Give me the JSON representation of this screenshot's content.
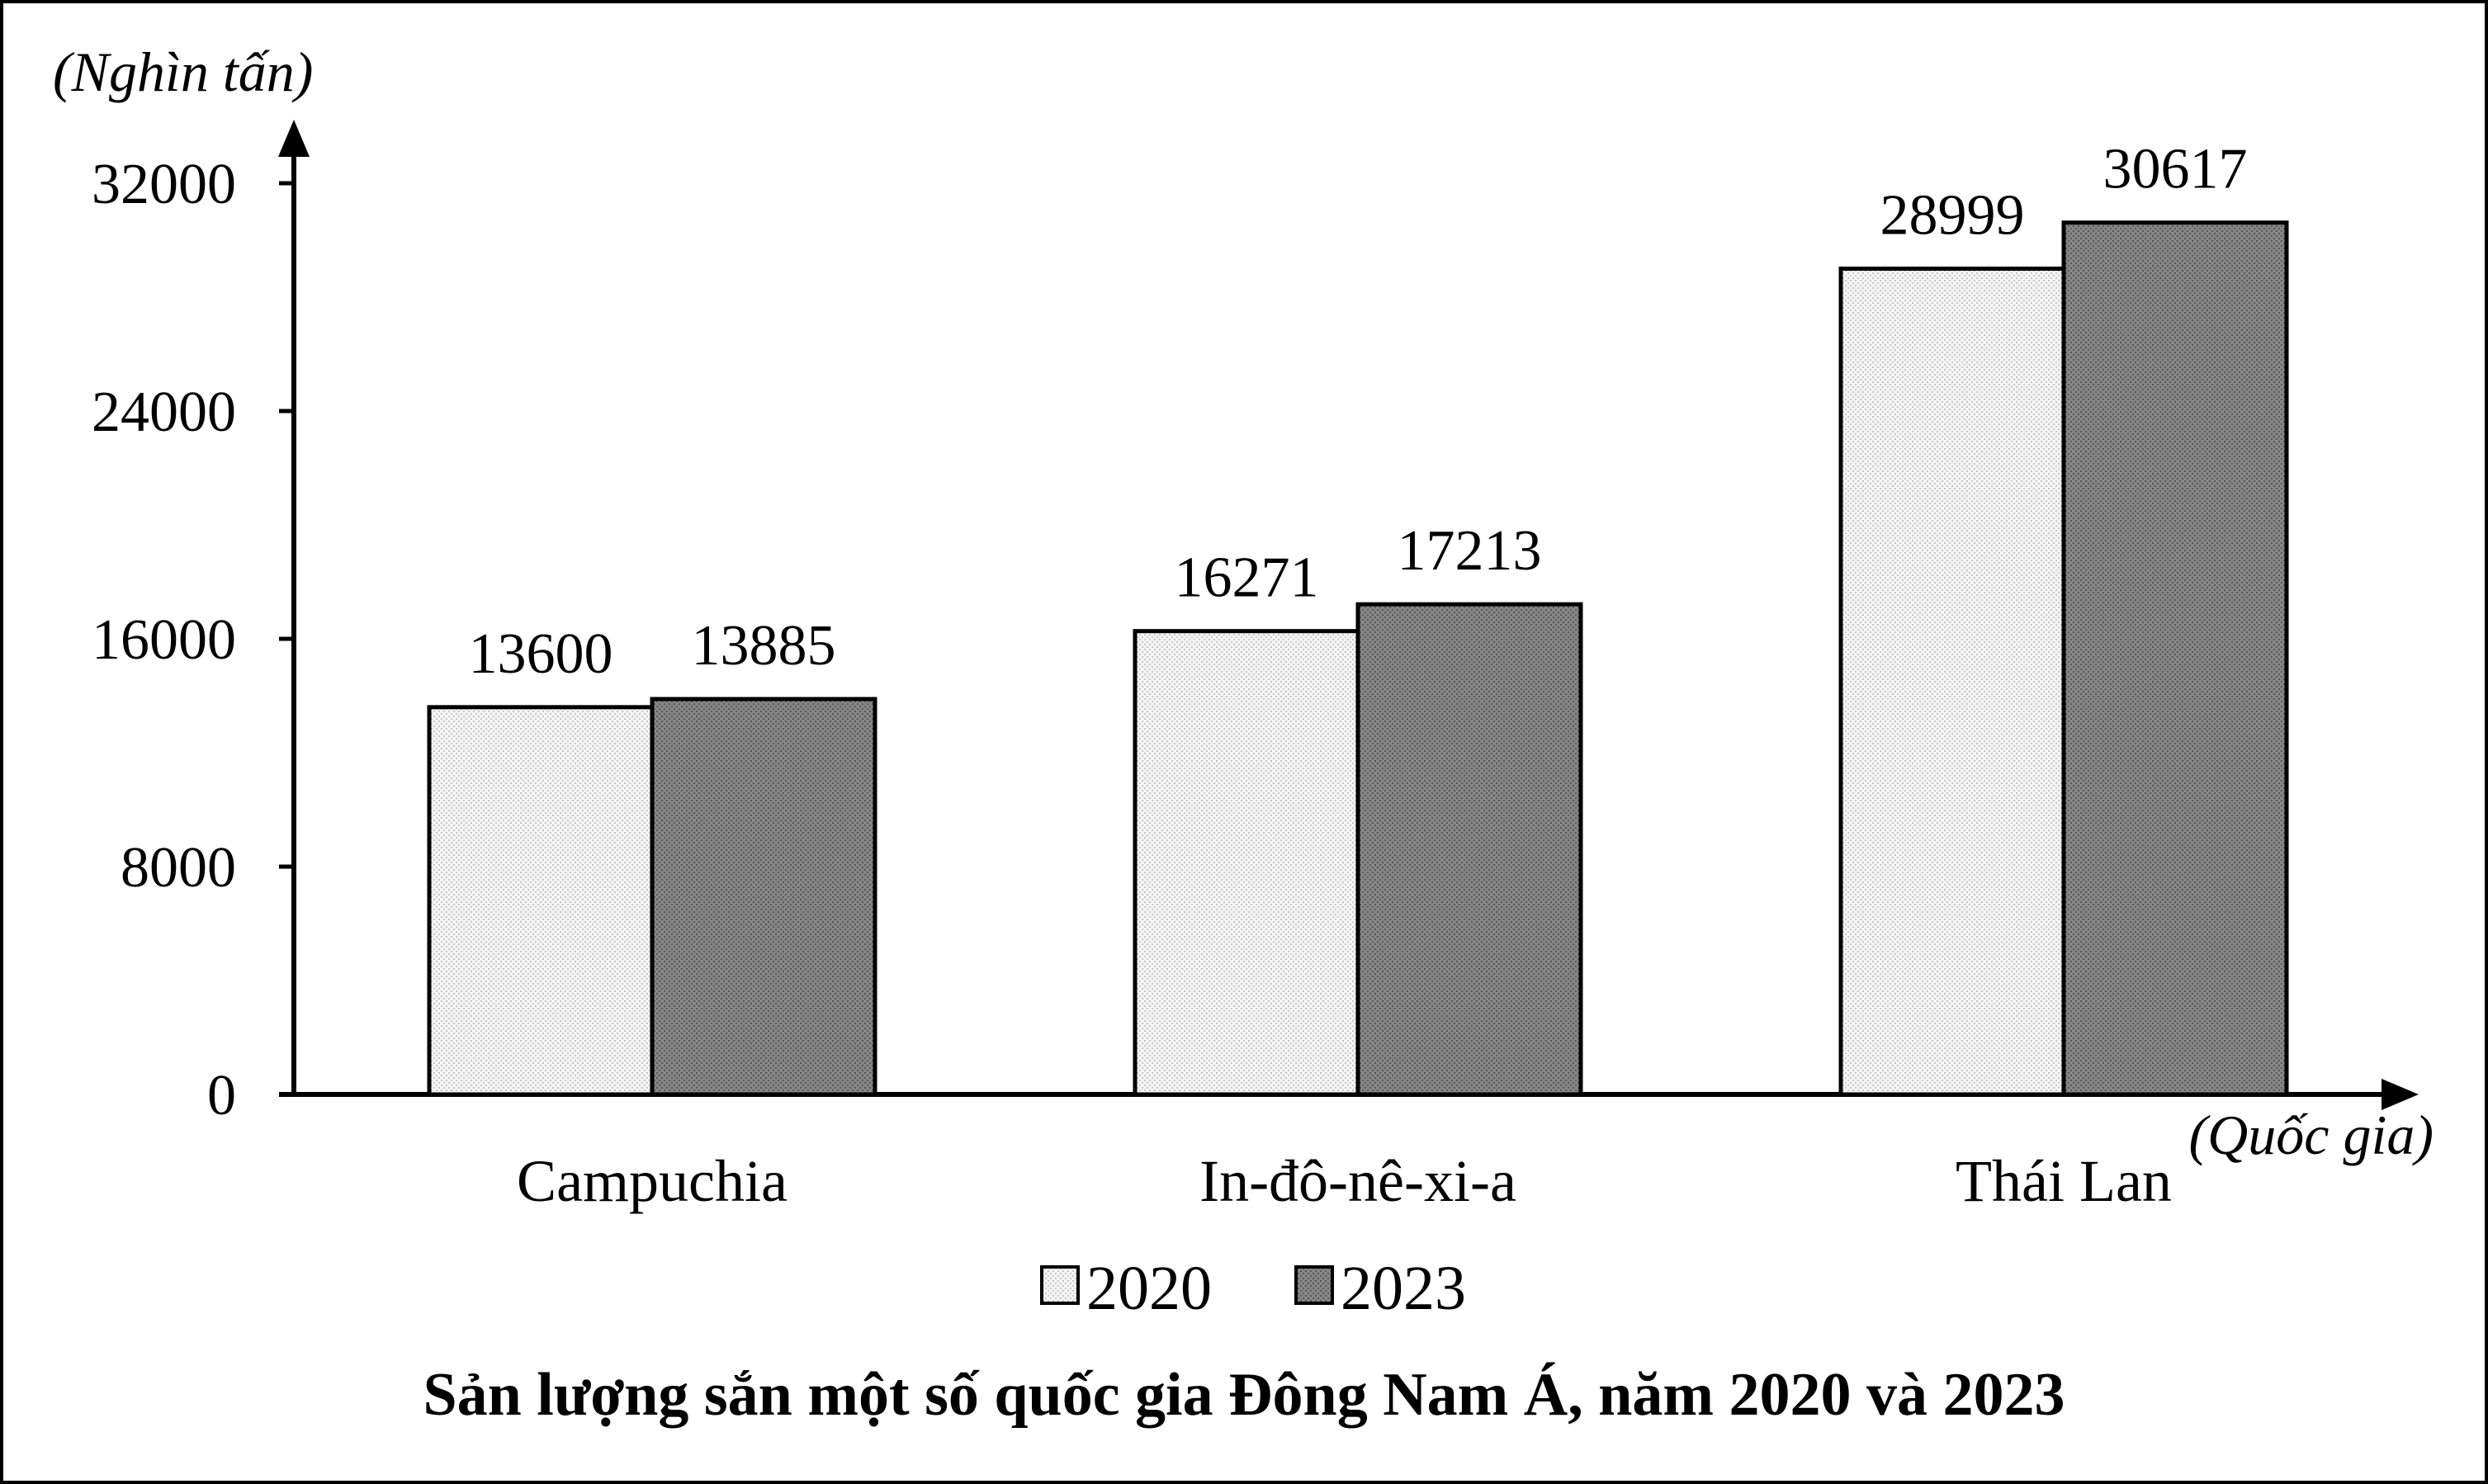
{
  "chart_data": {
    "type": "bar",
    "title": "Sản lượng sắn một số quốc gia Đông Nam Á, năm 2020 và 2023",
    "ylabel": "(Nghìn tấn)",
    "xlabel": "(Quốc gia)",
    "categories": [
      "Campuchia",
      "In-đô-nê-xi-a",
      "Thái Lan"
    ],
    "series": [
      {
        "name": "2020",
        "values": [
          13600,
          16271,
          28999
        ],
        "color": "#ededed"
      },
      {
        "name": "2023",
        "values": [
          13885,
          17213,
          30617
        ],
        "color": "#7f7f7f"
      }
    ],
    "ylim": [
      0,
      32000
    ],
    "yticks": [
      0,
      8000,
      16000,
      24000,
      32000
    ],
    "ytick_labels": [
      "0",
      "8000",
      "16000",
      "24000",
      "32000"
    ],
    "grid": false,
    "legend": "bottom"
  }
}
